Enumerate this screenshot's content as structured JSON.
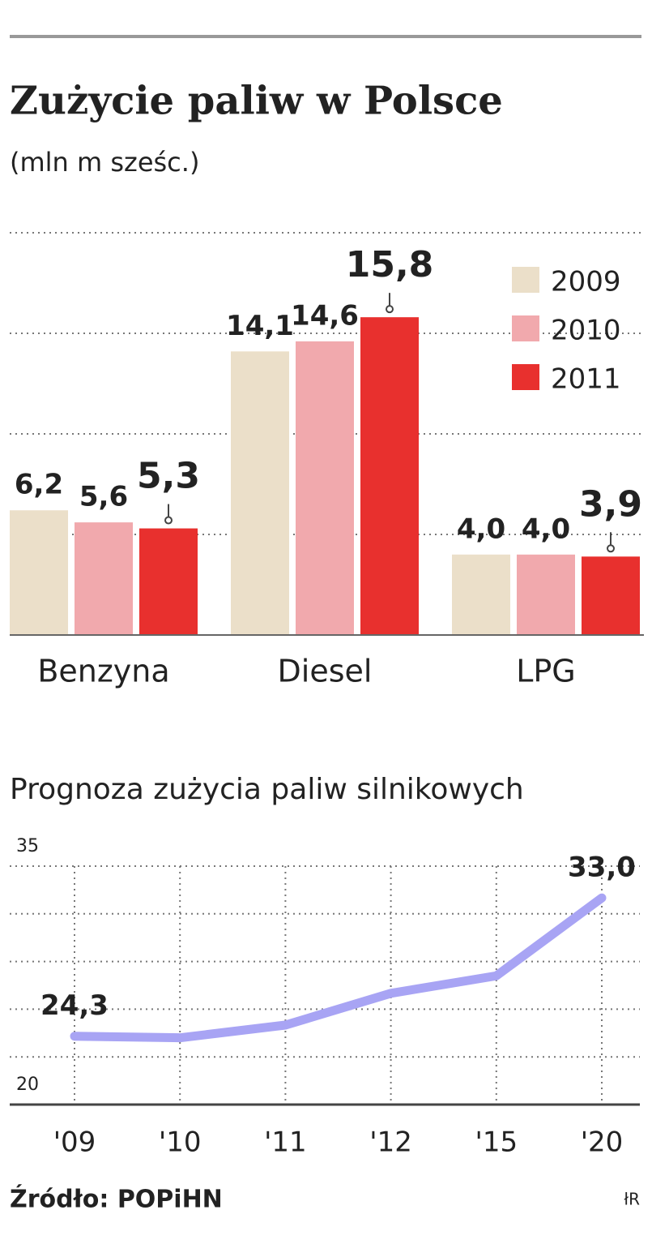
{
  "chart_data": [
    {
      "type": "bar",
      "title": "Zużycie paliw w Polsce",
      "subtitle": "(mln m sześc.)",
      "categories": [
        "Benzyna",
        "Diesel",
        "LPG"
      ],
      "series": [
        {
          "name": "2009",
          "color": "#ebdfc9",
          "values": [
            6.2,
            14.1,
            4.0
          ],
          "value_labels": [
            "6,2",
            "14,1",
            "4,0"
          ]
        },
        {
          "name": "2010",
          "color": "#f1a9ad",
          "values": [
            5.6,
            14.6,
            4.0
          ],
          "value_labels": [
            "5,6",
            "14,6",
            "4,0"
          ]
        },
        {
          "name": "2011",
          "color": "#e8302e",
          "values": [
            5.3,
            15.8,
            3.9
          ],
          "value_labels": [
            "5,3",
            "15,8",
            "3,9"
          ]
        }
      ],
      "ylim": [
        0,
        20
      ],
      "grid_lines": [
        5,
        10,
        15,
        20
      ],
      "grid": true,
      "legend": "top-right"
    },
    {
      "type": "line",
      "title": "Prognoza zużycia paliw silnikowych",
      "categories": [
        "'09",
        "'10",
        "'11",
        "'12",
        "'15",
        "'20"
      ],
      "series": [
        {
          "color": "#a8a4f4",
          "values": [
            24.3,
            24.2,
            25.0,
            27.0,
            28.1,
            33.0
          ],
          "value_labels": [
            "24,3",
            null,
            null,
            null,
            null,
            "33,0"
          ]
        }
      ],
      "ylim": [
        20,
        35
      ],
      "yticks": [
        20,
        35
      ],
      "grid_lines": [
        23,
        26,
        29,
        32
      ],
      "grid": true
    }
  ],
  "source": "Źródło: POPiHN",
  "credit": "łR"
}
